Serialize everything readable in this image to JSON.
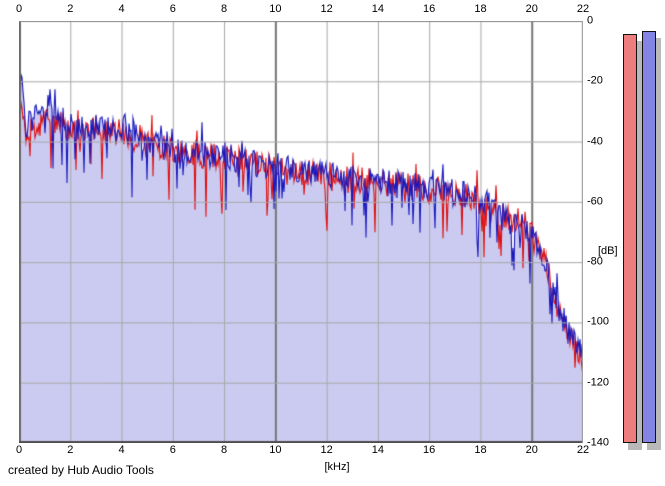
{
  "window": {
    "credit": "created by Hub Audio Tools"
  },
  "chart_data": {
    "type": "line",
    "title": "",
    "xlabel": "[kHz]",
    "ylabel": "[dB]",
    "xlim": [
      0,
      22
    ],
    "ylim": [
      -140,
      0
    ],
    "x_ticks": [
      0,
      2,
      4,
      6,
      8,
      10,
      12,
      14,
      16,
      18,
      20,
      22
    ],
    "y_ticks": [
      0,
      -20,
      -40,
      -60,
      -80,
      -100,
      -120,
      -140
    ],
    "grid": true,
    "x": [
      0,
      0.08,
      0.25,
      0.5,
      1,
      1.5,
      2,
      2.5,
      3,
      3.5,
      4,
      4.5,
      5,
      5.5,
      6,
      6.5,
      7,
      7.5,
      8,
      8.5,
      9,
      9.5,
      10,
      10.5,
      11,
      11.5,
      12,
      12.5,
      13,
      13.5,
      14,
      14.5,
      15,
      15.5,
      16,
      16.5,
      17,
      17.5,
      18,
      18.5,
      19,
      19.5,
      20,
      20.25,
      20.5,
      20.75,
      21,
      21.25,
      21.5,
      21.75,
      22
    ],
    "series": [
      {
        "name": "red-trace",
        "color": "#e01010",
        "values": [
          -42,
          -27,
          -38,
          -34,
          -34,
          -33,
          -36,
          -37,
          -36,
          -37,
          -36,
          -39,
          -41,
          -42,
          -43,
          -44,
          -44,
          -45,
          -45,
          -46,
          -47,
          -48,
          -49,
          -50,
          -50,
          -51,
          -52,
          -52,
          -53,
          -53,
          -54,
          -54,
          -55,
          -55,
          -56,
          -56,
          -57,
          -58,
          -61,
          -63,
          -65,
          -68,
          -71,
          -75,
          -80,
          -87,
          -95,
          -101,
          -105,
          -108,
          -113
        ]
      },
      {
        "name": "blue-trace",
        "color": "#1a1abd",
        "fill": "#cbcbf1",
        "values": [
          -40,
          -15,
          -36,
          -32,
          -33,
          -32,
          -35,
          -36,
          -35,
          -36,
          -35,
          -38,
          -40,
          -42,
          -43,
          -43,
          -44,
          -45,
          -44,
          -46,
          -47,
          -48,
          -48,
          -49,
          -50,
          -51,
          -51,
          -52,
          -52,
          -53,
          -53,
          -54,
          -54,
          -55,
          -55,
          -56,
          -57,
          -58,
          -60,
          -62,
          -64,
          -67,
          -71,
          -74,
          -79,
          -86,
          -94,
          -100,
          -104,
          -107,
          -112
        ]
      }
    ],
    "noise_db": {
      "jitter": 4.5,
      "downward_spike_max": 15,
      "upward_spike_max": 7
    },
    "meters": [
      {
        "name": "red-meter",
        "color": "#ee7e7e",
        "peak_db": -4.3
      },
      {
        "name": "blue-meter",
        "color": "#8484e4",
        "peak_db": -3.3
      }
    ]
  },
  "colors": {
    "page_bg": "#ffffff",
    "plot_bg": "#ffffff",
    "grid": "#a8a8a8",
    "grid_major": "#767676",
    "border_dark": "#4d4d4d",
    "border_left": "#6a6a6a",
    "border_light": "#9a9a9a",
    "meter_shadow": "#b9b9b9",
    "axis_text": "#000000"
  }
}
